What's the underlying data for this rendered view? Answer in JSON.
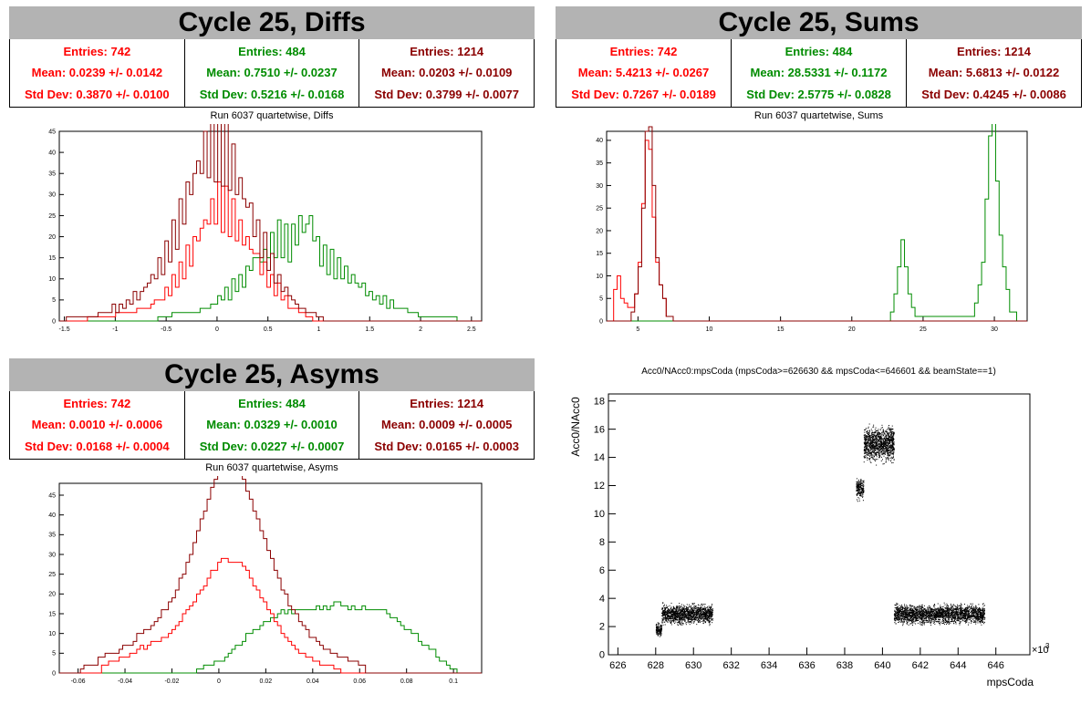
{
  "panels": {
    "diffs": {
      "banner": "Cycle 25, Diffs",
      "subtitle": "Run 6037 quartetwise, Diffs",
      "stats": [
        {
          "entries": "Entries: 742",
          "mean": "Mean: 0.0239 +/- 0.0142",
          "std": "Std Dev: 0.3870 +/- 0.0100",
          "color": "#ff0000"
        },
        {
          "entries": "Entries: 484",
          "mean": "Mean: 0.7510 +/- 0.0237",
          "std": "Std Dev: 0.5216 +/- 0.0168",
          "color": "#008c00"
        },
        {
          "entries": "Entries: 1214",
          "mean": "Mean: 0.0203 +/- 0.0109",
          "std": "Std Dev: 0.3799 +/- 0.0077",
          "color": "#8b0000"
        }
      ]
    },
    "sums": {
      "banner": "Cycle 25, Sums",
      "subtitle": "Run 6037 quartetwise, Sums",
      "stats": [
        {
          "entries": "Entries: 742",
          "mean": "Mean: 5.4213 +/- 0.0267",
          "std": "Std Dev: 0.7267 +/- 0.0189",
          "color": "#ff0000"
        },
        {
          "entries": "Entries: 484",
          "mean": "Mean: 28.5331 +/- 0.1172",
          "std": "Std Dev: 2.5775 +/- 0.0828",
          "color": "#008c00"
        },
        {
          "entries": "Entries: 1214",
          "mean": "Mean: 5.6813 +/- 0.0122",
          "std": "Std Dev: 0.4245 +/- 0.0086",
          "color": "#8b0000"
        }
      ]
    },
    "asyms": {
      "banner": "Cycle 25, Asyms",
      "subtitle": "Run 6037 quartetwise, Asyms",
      "stats": [
        {
          "entries": "Entries: 742",
          "mean": "Mean: 0.0010 +/- 0.0006",
          "std": "Std Dev: 0.0168 +/- 0.0004",
          "color": "#ff0000"
        },
        {
          "entries": "Entries: 484",
          "mean": "Mean: 0.0329 +/- 0.0010",
          "std": "Std Dev: 0.0227 +/- 0.0007",
          "color": "#008c00"
        },
        {
          "entries": "Entries: 1214",
          "mean": "Mean: 0.0009 +/- 0.0005",
          "std": "Std Dev: 0.0165 +/- 0.0003",
          "color": "#8b0000"
        }
      ]
    },
    "scatter": {
      "title": "Acc0/NAcc0:mpsCoda (mpsCoda>=626630 && mpsCoda<=646601 && beamState==1)"
    }
  },
  "chart_data": [
    {
      "type": "histogram",
      "xlim": [
        -1.55,
        2.6
      ],
      "ylim": [
        0,
        45
      ],
      "xticks": [
        -1.5,
        -1,
        -0.5,
        0,
        0.5,
        1,
        1.5,
        2,
        2.5
      ],
      "xtick_labels": [
        "-1.5",
        "-1",
        "-0.5",
        "0",
        "0.5",
        "1",
        "1.5",
        "2",
        "2.5"
      ],
      "yticks": [
        0,
        5,
        10,
        15,
        20,
        25,
        30,
        35,
        40,
        45
      ],
      "ytick_labels": [
        "0",
        "5",
        "10",
        "15",
        "20",
        "25",
        "30",
        "35",
        "40",
        "45"
      ],
      "series": [
        {
          "color": "#008c00",
          "bins": [
            [
              -0.6,
              1
            ],
            [
              -0.3,
              2
            ],
            [
              -0.1,
              3
            ],
            [
              0.05,
              6
            ],
            [
              0.2,
              9
            ],
            [
              0.3,
              12
            ],
            [
              0.4,
              15
            ],
            [
              0.5,
              17
            ],
            [
              0.6,
              20
            ],
            [
              0.7,
              18
            ],
            [
              0.8,
              22
            ],
            [
              0.9,
              24
            ],
            [
              1.0,
              16
            ],
            [
              1.1,
              14
            ],
            [
              1.2,
              12
            ],
            [
              1.3,
              10
            ],
            [
              1.4,
              8
            ],
            [
              1.5,
              6
            ],
            [
              1.6,
              5
            ],
            [
              1.7,
              4
            ],
            [
              1.8,
              3
            ],
            [
              1.9,
              2
            ],
            [
              2.0,
              1
            ],
            [
              2.1,
              1
            ],
            [
              2.3,
              1
            ]
          ]
        },
        {
          "color": "#ff0000",
          "bins": [
            [
              -1.3,
              1
            ],
            [
              -1.1,
              1
            ],
            [
              -0.9,
              2
            ],
            [
              -0.7,
              3
            ],
            [
              -0.55,
              6
            ],
            [
              -0.4,
              10
            ],
            [
              -0.3,
              15
            ],
            [
              -0.2,
              20
            ],
            [
              -0.1,
              25
            ],
            [
              0.0,
              28
            ],
            [
              0.1,
              26
            ],
            [
              0.2,
              22
            ],
            [
              0.3,
              18
            ],
            [
              0.4,
              14
            ],
            [
              0.5,
              10
            ],
            [
              0.6,
              7
            ],
            [
              0.7,
              4
            ],
            [
              0.8,
              2
            ],
            [
              0.9,
              1
            ]
          ]
        },
        {
          "color": "#8b0000",
          "bins": [
            [
              -1.5,
              1
            ],
            [
              -1.3,
              1
            ],
            [
              -1.1,
              2
            ],
            [
              -0.9,
              4
            ],
            [
              -0.7,
              8
            ],
            [
              -0.55,
              14
            ],
            [
              -0.4,
              22
            ],
            [
              -0.3,
              30
            ],
            [
              -0.2,
              37
            ],
            [
              -0.1,
              41
            ],
            [
              0.0,
              43
            ],
            [
              0.1,
              39
            ],
            [
              0.2,
              33
            ],
            [
              0.3,
              27
            ],
            [
              0.4,
              20
            ],
            [
              0.5,
              14
            ],
            [
              0.6,
              9
            ],
            [
              0.7,
              6
            ],
            [
              0.8,
              3
            ],
            [
              0.9,
              2
            ],
            [
              1.0,
              1
            ]
          ]
        }
      ]
    },
    {
      "type": "histogram",
      "xlim": [
        2.8,
        32.3
      ],
      "ylim": [
        0,
        42
      ],
      "xticks": [
        5,
        10,
        15,
        20,
        25,
        30
      ],
      "xtick_labels": [
        "5",
        "10",
        "15",
        "20",
        "25",
        "30"
      ],
      "yticks": [
        0,
        5,
        10,
        15,
        20,
        25,
        30,
        35,
        40
      ],
      "ytick_labels": [
        "0",
        "5",
        "10",
        "15",
        "20",
        "25",
        "30",
        "35",
        "40"
      ],
      "series": [
        {
          "color": "#008c00",
          "bins": [
            [
              22.6,
              1
            ],
            [
              22.9,
              5
            ],
            [
              23.2,
              10
            ],
            [
              23.5,
              16
            ],
            [
              23.8,
              11
            ],
            [
              24.1,
              4
            ],
            [
              24.4,
              1
            ],
            [
              28.4,
              1
            ],
            [
              28.7,
              5
            ],
            [
              29.0,
              12
            ],
            [
              29.3,
              25
            ],
            [
              29.6,
              34
            ],
            [
              29.9,
              40
            ],
            [
              30.2,
              30
            ],
            [
              30.5,
              16
            ],
            [
              30.8,
              6
            ],
            [
              31.1,
              2
            ]
          ]
        },
        {
          "color": "#ff0000",
          "bins": [
            [
              3.2,
              5
            ],
            [
              3.5,
              13
            ],
            [
              3.8,
              6
            ],
            [
              4.1,
              3
            ],
            [
              4.4,
              2
            ],
            [
              4.7,
              5
            ],
            [
              5.0,
              15
            ],
            [
              5.3,
              28
            ],
            [
              5.6,
              36
            ],
            [
              5.9,
              30
            ],
            [
              6.2,
              18
            ],
            [
              6.5,
              8
            ],
            [
              6.8,
              3
            ],
            [
              7.1,
              1
            ]
          ]
        },
        {
          "color": "#8b0000",
          "bins": [
            [
              4.4,
              1
            ],
            [
              4.7,
              4
            ],
            [
              5.0,
              14
            ],
            [
              5.3,
              30
            ],
            [
              5.6,
              39
            ],
            [
              5.9,
              34
            ],
            [
              6.2,
              20
            ],
            [
              6.5,
              9
            ],
            [
              6.8,
              3
            ],
            [
              7.1,
              1
            ]
          ]
        }
      ]
    },
    {
      "type": "histogram",
      "xlim": [
        -0.068,
        0.112
      ],
      "ylim": [
        0,
        48
      ],
      "xticks": [
        -0.06,
        -0.04,
        -0.02,
        0,
        0.02,
        0.04,
        0.06,
        0.08,
        0.1
      ],
      "xtick_labels": [
        "-0.06",
        "-0.04",
        "-0.02",
        "0",
        "0.02",
        "0.04",
        "0.06",
        "0.08",
        "0.1"
      ],
      "yticks": [
        0,
        5,
        10,
        15,
        20,
        25,
        30,
        35,
        40,
        45
      ],
      "ytick_labels": [
        "0",
        "5",
        "10",
        "15",
        "20",
        "25",
        "30",
        "35",
        "40",
        "45"
      ],
      "series": [
        {
          "color": "#008c00",
          "bins": [
            [
              -0.01,
              1
            ],
            [
              0.0,
              3
            ],
            [
              0.01,
              7
            ],
            [
              0.02,
              11
            ],
            [
              0.03,
              15
            ],
            [
              0.04,
              19
            ],
            [
              0.05,
              23
            ],
            [
              0.06,
              18
            ],
            [
              0.07,
              14
            ],
            [
              0.08,
              9
            ],
            [
              0.09,
              5
            ],
            [
              0.1,
              1
            ]
          ]
        },
        {
          "color": "#ff0000",
          "bins": [
            [
              -0.05,
              2
            ],
            [
              -0.04,
              4
            ],
            [
              -0.03,
              8
            ],
            [
              -0.02,
              14
            ],
            [
              -0.01,
              22
            ],
            [
              0.0,
              26
            ],
            [
              0.01,
              22
            ],
            [
              0.02,
              14
            ],
            [
              0.03,
              8
            ],
            [
              0.04,
              4
            ],
            [
              0.05,
              1
            ]
          ]
        },
        {
          "color": "#8b0000",
          "bins": [
            [
              -0.06,
              1
            ],
            [
              -0.05,
              3
            ],
            [
              -0.04,
              7
            ],
            [
              -0.03,
              14
            ],
            [
              -0.02,
              24
            ],
            [
              -0.01,
              36
            ],
            [
              0.0,
              45
            ],
            [
              0.01,
              40
            ],
            [
              0.02,
              30
            ],
            [
              0.03,
              20
            ],
            [
              0.04,
              11
            ],
            [
              0.05,
              5
            ],
            [
              0.06,
              2
            ]
          ]
        }
      ]
    },
    {
      "type": "scatter",
      "xlabel": "mpsCoda",
      "ylabel": "Acc0/NAcc0",
      "x_multiplier_label": "×10",
      "x_multiplier_exp": "3",
      "xlim": [
        625.5,
        647.8
      ],
      "ylim": [
        0,
        18.5
      ],
      "xticks": [
        626,
        628,
        630,
        632,
        634,
        636,
        638,
        640,
        642,
        644,
        646
      ],
      "xtick_labels": [
        "626",
        "628",
        "630",
        "632",
        "634",
        "636",
        "638",
        "640",
        "642",
        "644",
        "646"
      ],
      "yticks": [
        0,
        2,
        4,
        6,
        8,
        10,
        12,
        14,
        16,
        18
      ],
      "ytick_labels": [
        "0",
        "2",
        "4",
        "6",
        "8",
        "10",
        "12",
        "14",
        "16",
        "18"
      ],
      "clusters": [
        {
          "x": [
            628.0,
            628.3
          ],
          "y": [
            1.2,
            2.4
          ],
          "n": 150
        },
        {
          "x": [
            628.3,
            631.0
          ],
          "y": [
            2.0,
            3.8
          ],
          "n": 1400
        },
        {
          "x": [
            638.6,
            639.0
          ],
          "y": [
            10.8,
            12.8
          ],
          "n": 200
        },
        {
          "x": [
            639.0,
            640.6
          ],
          "y": [
            13.4,
            16.6
          ],
          "n": 1200
        },
        {
          "x": [
            640.6,
            645.4
          ],
          "y": [
            2.0,
            3.8
          ],
          "n": 2400
        }
      ]
    }
  ]
}
